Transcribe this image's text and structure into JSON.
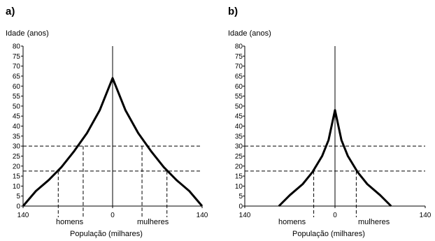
{
  "chart_data": [
    {
      "type": "line",
      "panel_label": "a)",
      "ylabel": "Idade (anos)",
      "xlabel": "População (milhares)",
      "x_left_label": "homens",
      "x_right_label": "mulheres",
      "yticks": [
        0,
        5,
        10,
        15,
        20,
        25,
        30,
        35,
        40,
        45,
        50,
        55,
        60,
        65,
        70,
        75,
        80
      ],
      "xticks": [
        140,
        0,
        140
      ],
      "ylim": [
        0,
        80
      ],
      "xlim": [
        -140,
        140
      ],
      "grid": false,
      "series": [
        {
          "x": [
            -140,
            -120,
            -100,
            -80,
            -60,
            -40,
            -20,
            0,
            20,
            40,
            60,
            80,
            100,
            120,
            140
          ],
          "y": [
            0,
            7.5,
            13,
            19.5,
            27.5,
            36.5,
            48,
            64,
            48,
            36.5,
            27.5,
            19.5,
            13,
            7.5,
            0
          ]
        }
      ],
      "reference_lines": [
        {
          "age": 30,
          "homens": -46,
          "mulheres": 46
        },
        {
          "age": 17.5,
          "homens": -85,
          "mulheres": 85
        }
      ]
    },
    {
      "type": "line",
      "panel_label": "b)",
      "ylabel": "Idade (anos)",
      "xlabel": "População (milhares)",
      "x_left_label": "homens",
      "x_right_label": "mulheres",
      "yticks": [
        0,
        5,
        10,
        15,
        20,
        25,
        30,
        35,
        40,
        45,
        50,
        55,
        60,
        65,
        70,
        75,
        80
      ],
      "xticks": [
        140,
        0,
        140
      ],
      "ylim": [
        0,
        80
      ],
      "xlim": [
        -140,
        140
      ],
      "grid": false,
      "series": [
        {
          "x": [
            -87,
            -70,
            -50,
            -35,
            -20,
            -10,
            0,
            10,
            20,
            35,
            50,
            70,
            87
          ],
          "y": [
            0,
            5.5,
            11,
            17,
            25,
            33,
            48,
            33,
            25,
            17,
            11,
            5.5,
            0
          ]
        }
      ],
      "reference_lines": [
        {
          "age": 30,
          "homens": 0,
          "mulheres": 0
        },
        {
          "age": 17.5,
          "homens": -33,
          "mulheres": 33
        }
      ]
    }
  ]
}
